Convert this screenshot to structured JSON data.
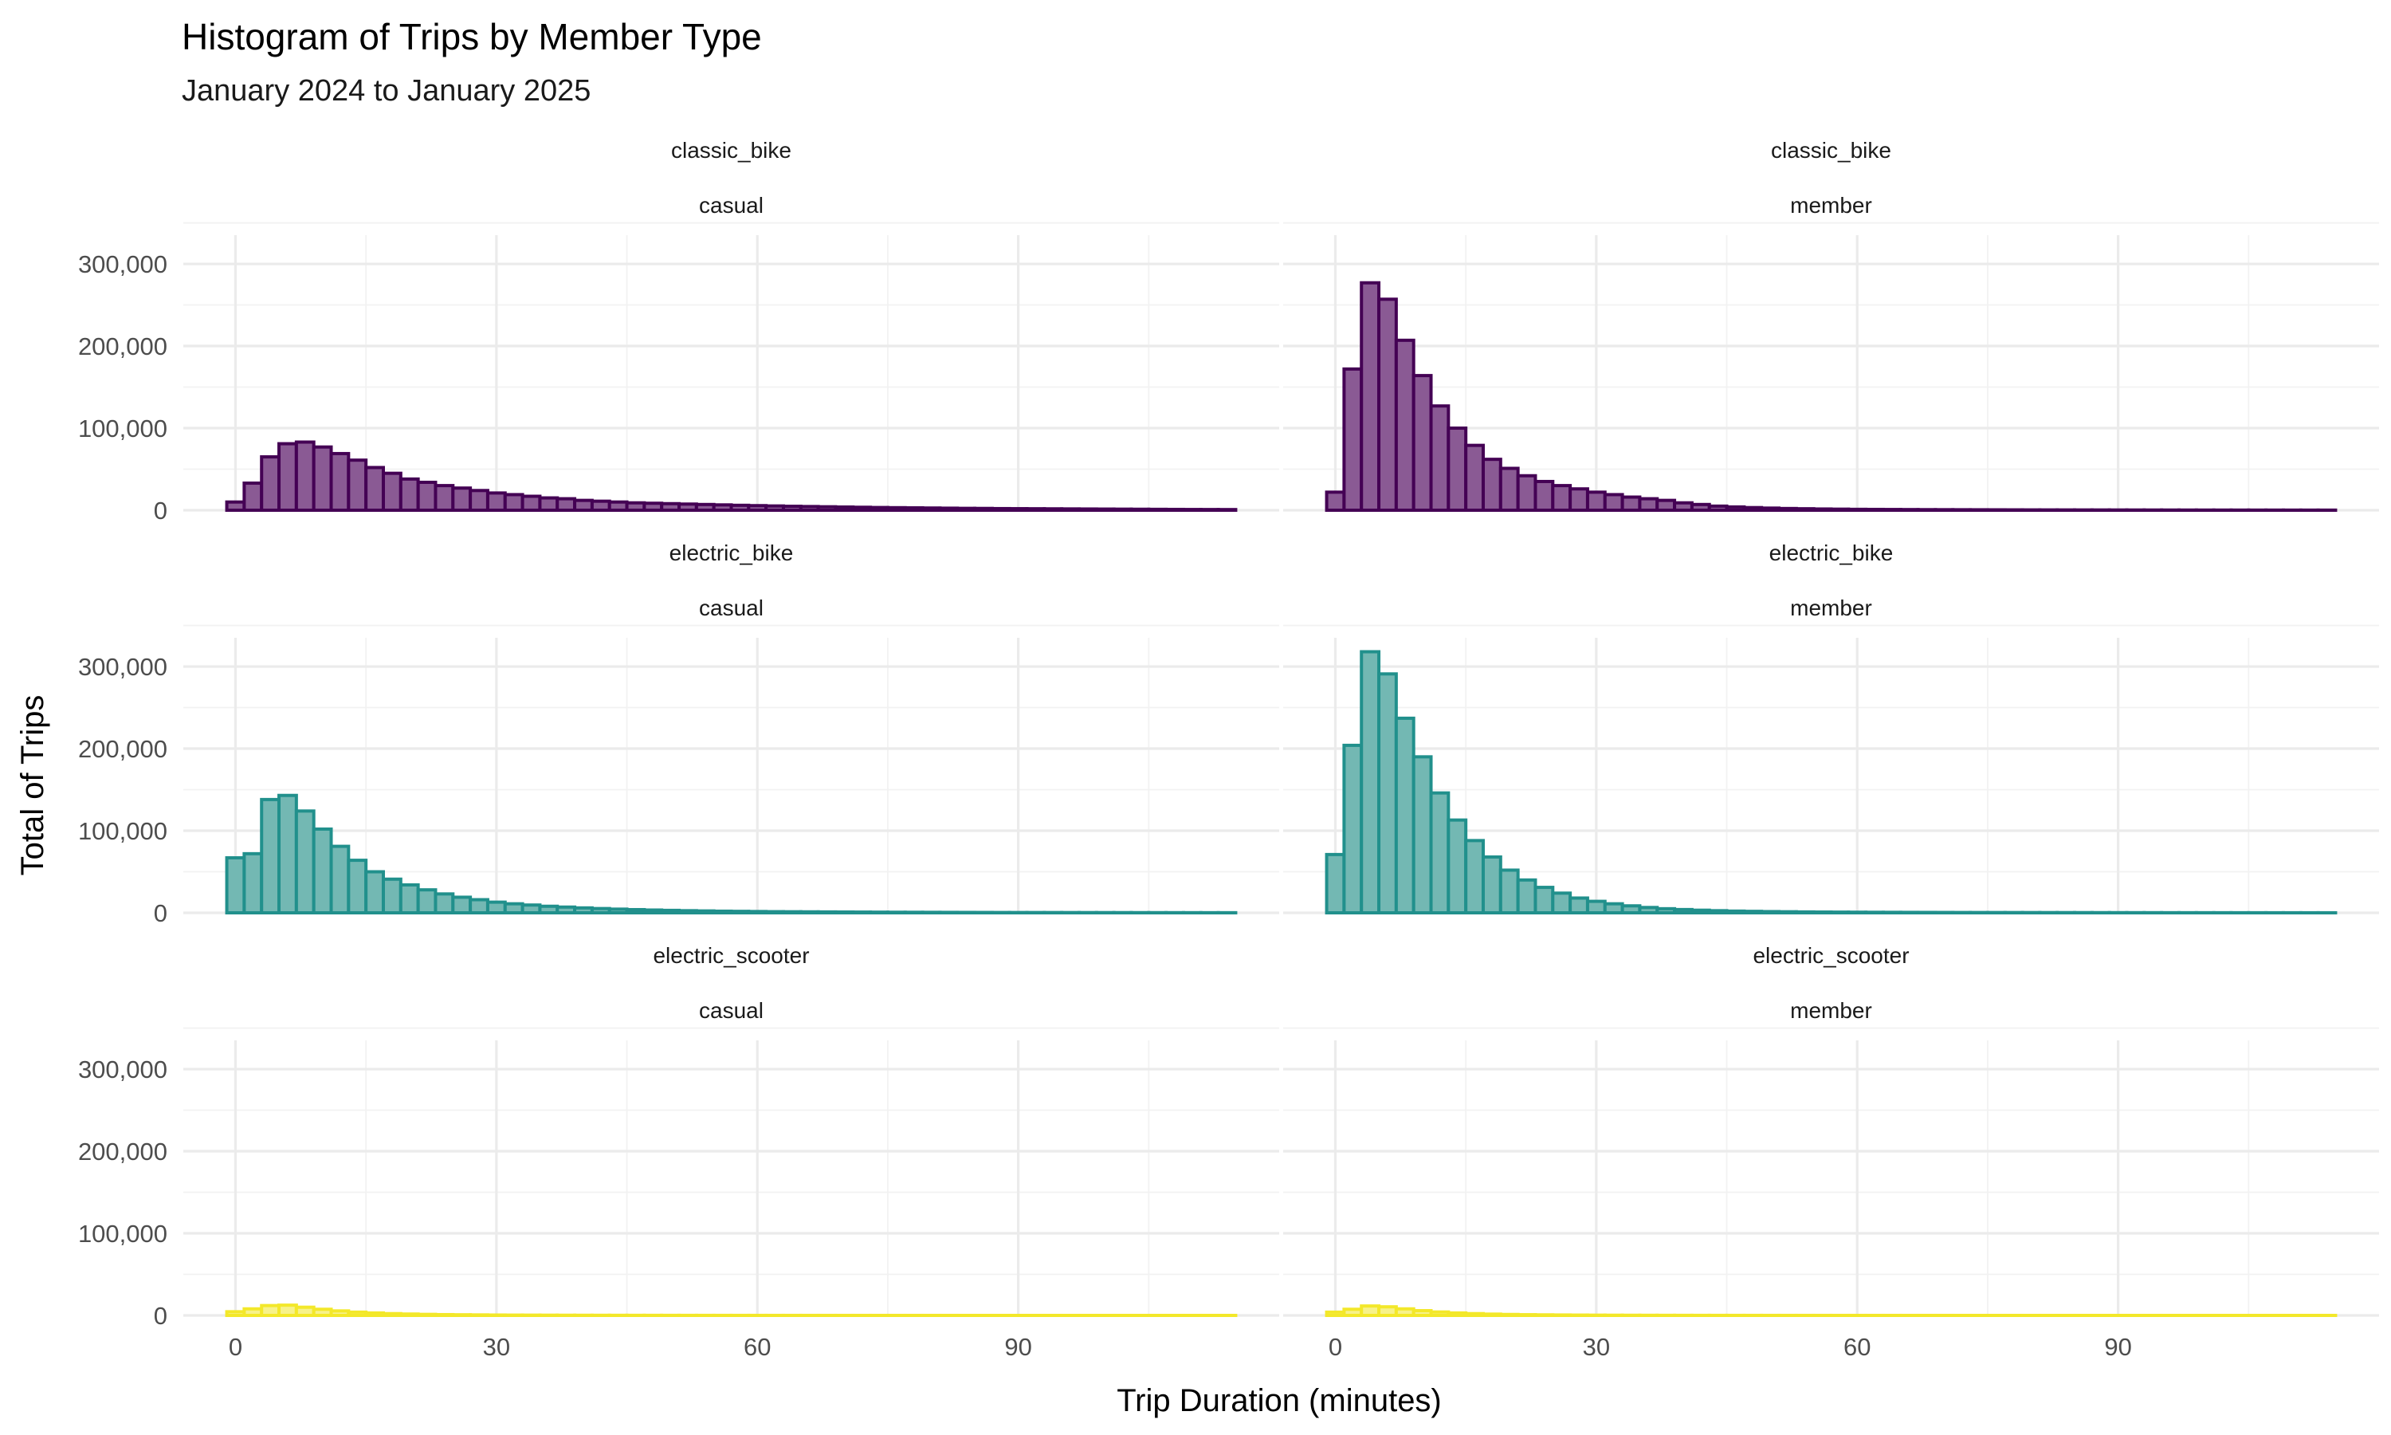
{
  "chart_data": {
    "type": "bar",
    "title": "Histogram of Trips by Member Type",
    "subtitle": "January 2024 to January 2025",
    "xlabel": "Trip Duration (minutes)",
    "ylabel": "Total of Trips",
    "x_ticks": [
      0,
      30,
      60,
      90
    ],
    "y_ticks": [
      0,
      100000,
      200000,
      300000
    ],
    "y_tick_labels": [
      "0",
      "100,000",
      "200,000",
      "300,000"
    ],
    "xlim": [
      -6,
      120
    ],
    "ylim": [
      0,
      335000
    ],
    "bin_width": 2,
    "bin_start": -1,
    "grid": true,
    "legend": "none",
    "colors": {
      "classic_bike": {
        "fill": "#8a5a94",
        "stroke": "#440154"
      },
      "electric_bike": {
        "fill": "#73b8b3",
        "stroke": "#21908c"
      },
      "electric_scooter": {
        "fill": "#f7f28a",
        "stroke": "#f3e82a"
      }
    },
    "facets": [
      {
        "row": "classic_bike",
        "col": "casual",
        "color": "classic_bike",
        "values": [
          10000,
          33000,
          65000,
          81000,
          83000,
          77000,
          69000,
          61000,
          52000,
          45000,
          38000,
          34000,
          30000,
          27000,
          24000,
          21000,
          19000,
          17000,
          15000,
          14000,
          12000,
          11000,
          10000,
          9000,
          8500,
          8000,
          7500,
          7000,
          6500,
          6000,
          5600,
          5200,
          4800,
          4500,
          4200,
          3900,
          3600,
          3300,
          3100,
          2900,
          2700,
          2500,
          2300,
          2200,
          2000,
          1900,
          1800,
          1700,
          1600,
          1500,
          1400,
          1300,
          1200,
          1100,
          1000,
          900,
          850,
          800
        ]
      },
      {
        "row": "classic_bike",
        "col": "member",
        "color": "classic_bike",
        "values": [
          22000,
          172000,
          277000,
          257000,
          207000,
          164000,
          127000,
          100000,
          79000,
          62000,
          51000,
          42000,
          35000,
          30000,
          26000,
          22000,
          19000,
          16000,
          14000,
          12000,
          9000,
          7000,
          5000,
          4000,
          3200,
          2600,
          2100,
          1800,
          1500,
          1300,
          1100,
          1000,
          900,
          800,
          700,
          650,
          600,
          550,
          500,
          450,
          400,
          380,
          360,
          340,
          320,
          300,
          280,
          260,
          240,
          220,
          200,
          190,
          180,
          170,
          160,
          150,
          140,
          130
        ]
      },
      {
        "row": "electric_bike",
        "col": "casual",
        "color": "electric_bike",
        "values": [
          67000,
          72000,
          138000,
          143000,
          124000,
          102000,
          81000,
          64000,
          50000,
          41000,
          34000,
          28000,
          23000,
          19000,
          16000,
          13000,
          11000,
          9500,
          8000,
          7000,
          6000,
          5200,
          4500,
          3900,
          3400,
          3000,
          2600,
          2300,
          2000,
          1800,
          1600,
          1400,
          1300,
          1200,
          1100,
          1000,
          900,
          800,
          700,
          650,
          600,
          550,
          500,
          450,
          400,
          380,
          360,
          340,
          320,
          300,
          280,
          260,
          240,
          220,
          200,
          180,
          160,
          150
        ]
      },
      {
        "row": "electric_bike",
        "col": "member",
        "color": "electric_bike",
        "values": [
          71000,
          204000,
          318000,
          291000,
          237000,
          190000,
          146000,
          113000,
          88000,
          68000,
          52000,
          40000,
          31000,
          24000,
          18000,
          14000,
          11000,
          8500,
          6500,
          5000,
          4000,
          3200,
          2600,
          2100,
          1800,
          1500,
          1300,
          1100,
          950,
          850,
          750,
          650,
          600,
          550,
          500,
          450,
          400,
          380,
          360,
          340,
          320,
          300,
          280,
          260,
          240,
          220,
          200,
          180,
          160,
          150,
          140,
          130,
          120,
          110,
          100,
          90,
          80,
          70
        ]
      },
      {
        "row": "electric_scooter",
        "col": "casual",
        "color": "electric_scooter",
        "values": [
          4500,
          8000,
          12000,
          12500,
          10000,
          7500,
          5500,
          4000,
          3000,
          2200,
          1700,
          1300,
          1000,
          800,
          650,
          500,
          400,
          350,
          300,
          250,
          200,
          180,
          160,
          140,
          120,
          100,
          90,
          80,
          70,
          60,
          55,
          50,
          45,
          40,
          35,
          30,
          28,
          26,
          24,
          22,
          20,
          18,
          16,
          14,
          12,
          10,
          10,
          10,
          10,
          10,
          10,
          10,
          10,
          10,
          10,
          10,
          10,
          10
        ]
      },
      {
        "row": "electric_scooter",
        "col": "member",
        "color": "electric_scooter",
        "values": [
          4000,
          7500,
          11500,
          10500,
          8000,
          5800,
          4200,
          3000,
          2200,
          1600,
          1200,
          900,
          700,
          550,
          420,
          330,
          260,
          210,
          170,
          140,
          110,
          90,
          80,
          70,
          60,
          50,
          45,
          40,
          35,
          30,
          28,
          26,
          24,
          22,
          20,
          18,
          16,
          14,
          12,
          10,
          10,
          10,
          10,
          10,
          10,
          10,
          10,
          10,
          10,
          10,
          10,
          10,
          10,
          10,
          10,
          10,
          10,
          10
        ]
      }
    ]
  }
}
